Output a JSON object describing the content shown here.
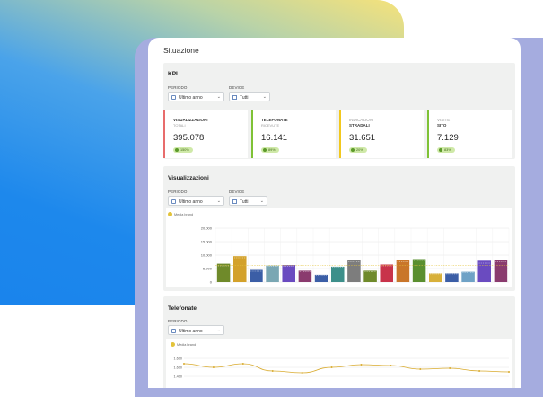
{
  "page_title": "Situazione",
  "kpi_section": {
    "title": "KPI",
    "period_label": "PERIODO",
    "period_value": "Ultimo anno",
    "device_label": "DEVICE",
    "device_value": "Tutti",
    "cards": [
      {
        "line1": "VISUALIZZAZIONI",
        "line2": "TOTALI",
        "value": "395.078",
        "badge": "150%",
        "color": "#e86c6c"
      },
      {
        "line1": "TELEFONATE",
        "line2": "RICEVUTE",
        "value": "16.141",
        "badge": "89%",
        "color": "#7fc236"
      },
      {
        "line1": "INDICAZIONI",
        "line2": "STRADALI",
        "value": "31.651",
        "badge": "20%",
        "color": "#f2c81e"
      },
      {
        "line1": "VISITE",
        "line2": "SITO",
        "value": "7.129",
        "badge": "83%",
        "color": "#7fc236"
      }
    ]
  },
  "views_section": {
    "title": "Visualizzazioni",
    "period_label": "PERIODO",
    "period_value": "Ultimo anno",
    "device_label": "DEVICE",
    "device_value": "Tutti",
    "legend": "Media brand"
  },
  "calls_section": {
    "title": "Telefonate",
    "period_label": "PERIODO",
    "period_value": "Ultimo anno",
    "legend": "Media brand"
  },
  "chart_data": [
    {
      "type": "bar",
      "yticks": [
        "20.000",
        "15.000",
        "10.000",
        "5.000",
        "0"
      ],
      "ylim": [
        0,
        20000
      ],
      "values": [
        6800,
        9600,
        4500,
        6100,
        6300,
        4200,
        2700,
        5700,
        8100,
        4200,
        6500,
        8000,
        8500,
        3200,
        3200,
        3800,
        7900,
        8000
      ],
      "averages": [
        6000,
        9000,
        4000,
        5900,
        5800,
        3900,
        2500,
        5500,
        7500,
        3800,
        6000,
        7500,
        8000,
        3000,
        3000,
        3500,
        7000,
        7500
      ],
      "colors": [
        "#6f8a2a",
        "#d3a12a",
        "#3b5ea6",
        "#7aa7b3",
        "#6a4bc0",
        "#8a3b6e",
        "#3b5ea6",
        "#3d8f8a",
        "#7d7d7d",
        "#6f8a2a",
        "#c8334a",
        "#c9762a",
        "#5a8f2f",
        "#d8b03a",
        "#3b5ea6",
        "#6fa2c6",
        "#6a4bc0",
        "#8a3b6e"
      ],
      "avg_line": 6200,
      "series": [
        {
          "name": "Media brand"
        }
      ]
    },
    {
      "type": "line",
      "yticks": [
        "1.600",
        "1.600",
        "1.400"
      ],
      "values": [
        1540,
        1500,
        1540,
        1460,
        1440,
        1500,
        1530,
        1520,
        1480,
        1490,
        1460,
        1450
      ],
      "series": [
        {
          "name": "Media brand"
        }
      ]
    }
  ]
}
